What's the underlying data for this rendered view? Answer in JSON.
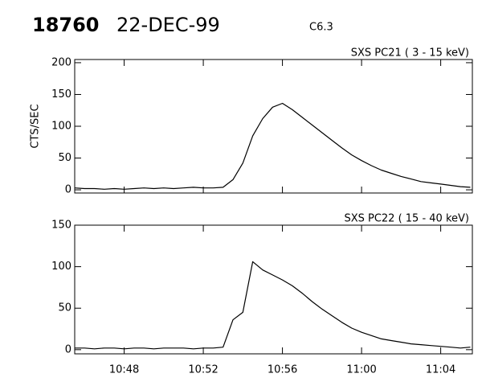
{
  "header": {
    "event": "18760",
    "date": "22-DEC-99",
    "class": "C6.3"
  },
  "chart_data": [
    {
      "type": "line",
      "title": "SXS PC21  (  3 - 15 keV)",
      "ylabel": "CTS/SEC",
      "x": [
        45.5,
        46,
        46.5,
        47,
        47.5,
        48,
        48.5,
        49,
        49.5,
        50,
        50.5,
        51,
        51.5,
        52,
        52.5,
        53,
        53.5,
        54,
        54.5,
        55,
        55.5,
        56,
        56.5,
        57,
        57.5,
        58,
        58.5,
        59,
        59.5,
        60,
        60.5,
        61,
        61.5,
        62,
        62.5,
        63,
        63.5,
        64,
        64.5,
        65,
        65.5
      ],
      "series": [
        {
          "name": "SXS PC21",
          "color": "#000000",
          "values": [
            3,
            2,
            2,
            1,
            2,
            1,
            2,
            3,
            2,
            3,
            2,
            3,
            4,
            3,
            3,
            4,
            16,
            42,
            85,
            112,
            130,
            136,
            126,
            114,
            102,
            90,
            78,
            66,
            55,
            46,
            38,
            31,
            26,
            21,
            17,
            13,
            11,
            9,
            7,
            5,
            4
          ]
        }
      ],
      "xlim": [
        45.5,
        65.6
      ],
      "xticks": [
        48,
        52,
        56,
        60,
        64
      ],
      "ylim": [
        -5,
        205
      ],
      "yticks": [
        0,
        50,
        100,
        150,
        200
      ]
    },
    {
      "type": "line",
      "title": "SXS PC22  ( 15 - 40 keV)",
      "x": [
        45.5,
        46,
        46.5,
        47,
        47.5,
        48,
        48.5,
        49,
        49.5,
        50,
        50.5,
        51,
        51.5,
        52,
        52.5,
        53,
        53.5,
        54,
        54.5,
        55,
        55.5,
        56,
        56.5,
        57,
        57.5,
        58,
        58.5,
        59,
        59.5,
        60,
        60.5,
        61,
        61.5,
        62,
        62.5,
        63,
        63.5,
        64,
        64.5,
        65,
        65.5
      ],
      "series": [
        {
          "name": "SXS PC22",
          "color": "#000000",
          "values": [
            2,
            2,
            1,
            2,
            2,
            1,
            2,
            2,
            1,
            2,
            2,
            2,
            1,
            2,
            2,
            3,
            36,
            45,
            106,
            96,
            90,
            84,
            77,
            68,
            58,
            49,
            41,
            33,
            26,
            21,
            17,
            13,
            11,
            9,
            7,
            6,
            5,
            4,
            3,
            2,
            3
          ]
        }
      ],
      "xlim": [
        45.5,
        65.6
      ],
      "xticks": [
        {
          "value": 48,
          "label": "10:48"
        },
        {
          "value": 52,
          "label": "10:52"
        },
        {
          "value": 56,
          "label": "10:56"
        },
        {
          "value": 60,
          "label": "11:00"
        },
        {
          "value": 64,
          "label": "11:04"
        }
      ],
      "ylim": [
        -5,
        150
      ],
      "yticks": [
        0,
        50,
        100,
        150
      ]
    }
  ]
}
